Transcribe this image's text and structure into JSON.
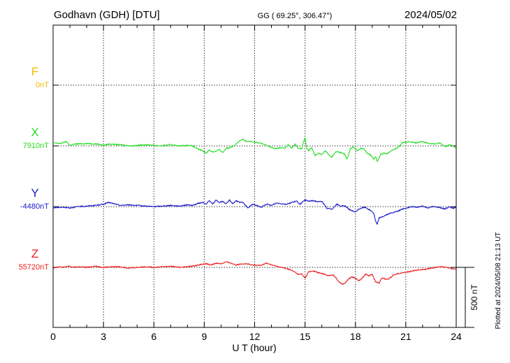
{
  "header": {
    "station": "Godhavn (GDH)  [DTU]",
    "coords": "GG ( 69.25°, 306.47°)",
    "date": "2024/05/02"
  },
  "chart_data": {
    "type": "line",
    "xlabel": "U T (hour)",
    "xlim": [
      0,
      24
    ],
    "x_ticks": [
      0,
      3,
      6,
      9,
      12,
      15,
      18,
      21,
      24
    ],
    "scale_bar": {
      "value": 500,
      "label": "500 nT"
    },
    "plotted_note": "Plotted at 2024/05/08 21:13 UT",
    "series": [
      {
        "name": "F",
        "baseline_label": "0nT",
        "color": "#f5b800",
        "hours": [],
        "values": []
      },
      {
        "name": "X",
        "baseline_label": "7910nT",
        "color": "#22dd22",
        "hours": [
          0,
          0.4,
          0.8,
          1.0,
          1.3,
          2.0,
          2.7,
          3.0,
          3.3,
          4.0,
          4.6,
          5.5,
          6.0,
          6.4,
          7.0,
          7.5,
          8.0,
          8.3,
          8.6,
          8.9,
          9.1,
          9.3,
          9.5,
          9.7,
          9.9,
          10.1,
          10.3,
          10.5,
          10.8,
          11.0,
          11.3,
          11.5,
          11.8,
          12.0,
          12.3,
          12.6,
          12.9,
          13.2,
          13.5,
          13.8,
          14.0,
          14.2,
          14.4,
          14.6,
          14.8,
          14.9,
          15.0,
          15.1,
          15.2,
          15.4,
          15.6,
          15.8,
          16.0,
          16.2,
          16.4,
          16.6,
          16.8,
          17.0,
          17.2,
          17.4,
          17.5,
          17.7,
          17.9,
          18.1,
          18.3,
          18.5,
          18.7,
          18.9,
          19.1,
          19.2,
          19.3,
          19.5,
          19.7,
          19.9,
          20.1,
          20.3,
          20.5,
          20.8,
          21.0,
          21.3,
          21.6,
          22.0,
          22.4,
          22.8,
          23.0,
          23.2,
          23.4,
          23.6,
          23.8,
          24.0
        ],
        "values": [
          25,
          20,
          35,
          5,
          15,
          20,
          15,
          5,
          15,
          10,
          0,
          10,
          5,
          0,
          10,
          0,
          5,
          0,
          -25,
          -40,
          -60,
          -35,
          -50,
          -45,
          -30,
          -55,
          -20,
          -15,
          5,
          30,
          55,
          35,
          40,
          30,
          25,
          10,
          -5,
          -25,
          -15,
          -20,
          10,
          -20,
          15,
          -20,
          -25,
          30,
          70,
          -20,
          -40,
          -15,
          -80,
          -60,
          -75,
          -40,
          -70,
          -95,
          -50,
          -50,
          -60,
          -75,
          -110,
          -20,
          -10,
          -40,
          -20,
          -25,
          -60,
          -75,
          -110,
          -90,
          -130,
          -70,
          -60,
          -65,
          -40,
          -30,
          -15,
          25,
          30,
          35,
          25,
          35,
          20,
          15,
          25,
          5,
          -5,
          10,
          0,
          -15
        ]
      },
      {
        "name": "Y",
        "baseline_label": "-4480nT",
        "color": "#1a1acc",
        "hours": [
          0,
          0.5,
          1.0,
          1.5,
          2.0,
          2.5,
          3.0,
          3.3,
          3.6,
          4.0,
          4.5,
          5.0,
          5.5,
          6.0,
          6.5,
          7.0,
          7.5,
          8.0,
          8.3,
          8.6,
          8.9,
          9.1,
          9.3,
          9.5,
          9.7,
          9.9,
          10.1,
          10.3,
          10.5,
          10.7,
          10.9,
          11.1,
          11.3,
          11.6,
          11.9,
          12.1,
          12.4,
          12.7,
          13.0,
          13.3,
          13.6,
          13.9,
          14.2,
          14.5,
          14.7,
          15.0,
          15.2,
          15.5,
          15.8,
          16.0,
          16.3,
          16.6,
          16.9,
          17.1,
          17.4,
          17.7,
          18.0,
          18.2,
          18.4,
          18.6,
          18.8,
          19.0,
          19.1,
          19.2,
          19.3,
          19.4,
          19.6,
          19.9,
          20.2,
          20.5,
          20.8,
          21.1,
          21.4,
          21.7,
          22.0,
          22.3,
          22.6,
          23.0,
          23.3,
          23.6,
          23.8,
          24.0
        ],
        "values": [
          -10,
          -5,
          -10,
          0,
          5,
          10,
          20,
          35,
          25,
          10,
          15,
          10,
          5,
          0,
          5,
          10,
          5,
          15,
          10,
          25,
          35,
          20,
          50,
          20,
          55,
          35,
          45,
          20,
          55,
          25,
          50,
          35,
          35,
          -10,
          20,
          10,
          -5,
          20,
          10,
          30,
          25,
          20,
          35,
          45,
          20,
          55,
          45,
          50,
          40,
          45,
          -15,
          -20,
          20,
          5,
          5,
          -30,
          -45,
          -20,
          -10,
          -5,
          -25,
          -40,
          -60,
          -120,
          -150,
          -95,
          -85,
          -65,
          -50,
          -40,
          -20,
          -10,
          0,
          -5,
          5,
          -10,
          0,
          -5,
          -20,
          0,
          -15,
          -5
        ]
      },
      {
        "name": "Z",
        "baseline_label": "55720nT",
        "color": "#ee1c1c",
        "hours": [
          0,
          0.3,
          0.6,
          0.9,
          1.2,
          1.5,
          2.0,
          2.5,
          3.0,
          3.5,
          4.0,
          4.5,
          5.0,
          5.5,
          6.0,
          6.5,
          7.0,
          7.5,
          8.0,
          8.5,
          8.8,
          9.1,
          9.4,
          9.7,
          10.0,
          10.3,
          10.6,
          10.9,
          11.2,
          11.5,
          11.8,
          12.1,
          12.4,
          12.7,
          13.0,
          13.3,
          13.6,
          13.9,
          14.2,
          14.4,
          14.6,
          14.8,
          15.0,
          15.2,
          15.5,
          15.8,
          16.1,
          16.4,
          16.7,
          17.0,
          17.2,
          17.4,
          17.6,
          17.8,
          18.0,
          18.2,
          18.4,
          18.6,
          18.8,
          19.0,
          19.2,
          19.4,
          19.6,
          19.8,
          20.0,
          20.3,
          20.6,
          21.0,
          21.4,
          21.8,
          22.2,
          22.6,
          23.0,
          23.4,
          23.7,
          24.0
        ],
        "values": [
          -5,
          5,
          0,
          10,
          0,
          5,
          0,
          10,
          0,
          5,
          5,
          -5,
          0,
          5,
          0,
          5,
          10,
          0,
          5,
          15,
          25,
          30,
          20,
          35,
          30,
          45,
          35,
          20,
          30,
          30,
          20,
          15,
          20,
          35,
          20,
          10,
          0,
          -10,
          -25,
          -40,
          -60,
          -55,
          -90,
          -40,
          -30,
          -45,
          -55,
          -70,
          -65,
          -115,
          -140,
          -130,
          -95,
          -80,
          -90,
          -110,
          -90,
          -55,
          -70,
          -60,
          -120,
          -130,
          -85,
          -100,
          -95,
          -60,
          -50,
          -40,
          -30,
          -20,
          -15,
          -5,
          5,
          0,
          -10,
          -15
        ]
      }
    ]
  }
}
